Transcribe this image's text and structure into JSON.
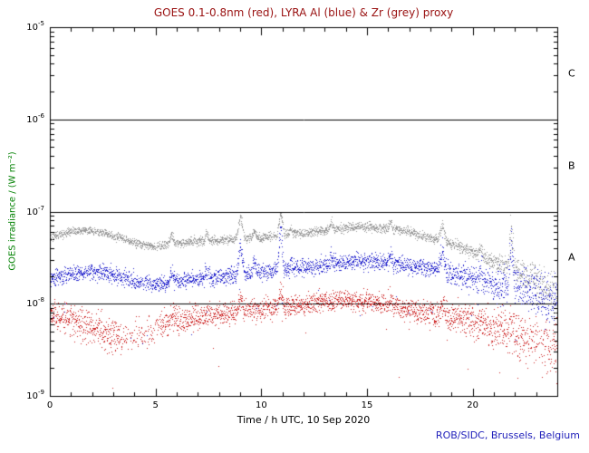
{
  "chart_data": {
    "type": "scatter",
    "title": "GOES 0.1-0.8nm (red), LYRA Al (blue) & Zr (grey) proxy",
    "title_color": "#991111",
    "xlabel": "Time / h UTC, 10 Sep 2020",
    "ylabel": "GOES irradiance / (W m⁻²)",
    "ylabel_color": "#008000",
    "credit": "ROB/SIDC, Brussels, Belgium",
    "credit_color": "#2222bb",
    "axis_color": "#000000",
    "x_range": [
      0,
      24
    ],
    "x_major_ticks": [
      0,
      5,
      10,
      15,
      20
    ],
    "x_minor_step": 1,
    "y_log_range": [
      -5,
      -9
    ],
    "y_tick_exponents": [
      -5,
      -6,
      -7,
      -8,
      -9
    ],
    "flare_class_lines": [
      -6,
      -7,
      -8
    ],
    "flare_class_labels": [
      {
        "label": "C",
        "center_log": -5.5
      },
      {
        "label": "B",
        "center_log": -6.5
      },
      {
        "label": "A",
        "center_log": -7.5
      }
    ],
    "cadence_minutes": 0.5,
    "seed": 20200910,
    "series": [
      {
        "name": "LYRA Zr proxy",
        "color": "#9a9a9a",
        "baseline_log10": [
          [
            0,
            -7.27
          ],
          [
            0.5,
            -7.24
          ],
          [
            1,
            -7.21
          ],
          [
            1.5,
            -7.2
          ],
          [
            2,
            -7.21
          ],
          [
            2.5,
            -7.23
          ],
          [
            3,
            -7.26
          ],
          [
            3.5,
            -7.3
          ],
          [
            4,
            -7.33
          ],
          [
            4.5,
            -7.36
          ],
          [
            5,
            -7.38
          ],
          [
            5.5,
            -7.36
          ],
          [
            6,
            -7.34
          ],
          [
            7,
            -7.32
          ],
          [
            8,
            -7.31
          ],
          [
            9,
            -7.29
          ],
          [
            10,
            -7.28
          ],
          [
            11,
            -7.25
          ],
          [
            12,
            -7.23
          ],
          [
            13,
            -7.2
          ],
          [
            13.5,
            -7.19
          ],
          [
            14,
            -7.17
          ],
          [
            15,
            -7.16
          ],
          [
            16,
            -7.18
          ],
          [
            17,
            -7.22
          ],
          [
            18,
            -7.28
          ],
          [
            18.5,
            -7.31
          ],
          [
            19,
            -7.35
          ],
          [
            19.5,
            -7.39
          ],
          [
            20,
            -7.44
          ],
          [
            20.5,
            -7.49
          ],
          [
            21,
            -7.54
          ],
          [
            21.5,
            -7.59
          ],
          [
            22,
            -7.63
          ],
          [
            22.5,
            -7.7
          ],
          [
            23,
            -7.76
          ],
          [
            23.5,
            -7.82
          ],
          [
            24,
            -7.88
          ]
        ],
        "sigma": [
          [
            0,
            0.022
          ],
          [
            18,
            0.025
          ],
          [
            20,
            0.03
          ],
          [
            21,
            0.045
          ],
          [
            22,
            0.08
          ],
          [
            23,
            0.1
          ],
          [
            24,
            0.12
          ]
        ],
        "spikes": [
          [
            5.75,
            0.12,
            0.15
          ],
          [
            7.4,
            0.1,
            0.12
          ],
          [
            9.0,
            0.24,
            0.2
          ],
          [
            9.65,
            0.1,
            0.12
          ],
          [
            10.9,
            0.24,
            0.18
          ],
          [
            11.4,
            0.08,
            0.1
          ],
          [
            13.3,
            0.08,
            0.12
          ],
          [
            16.1,
            0.09,
            0.12
          ],
          [
            18.55,
            0.18,
            0.2
          ],
          [
            20.35,
            0.1,
            0.12
          ],
          [
            21.8,
            0.45,
            0.15
          ],
          [
            22.9,
            0.1,
            0.1
          ]
        ],
        "gaps": [],
        "outlier_prob": 0.002,
        "outlier_depth": [
          0.2,
          0.6
        ]
      },
      {
        "name": "LYRA Al proxy",
        "color": "#2222cc",
        "baseline_log10": [
          [
            0,
            -7.74
          ],
          [
            1,
            -7.67
          ],
          [
            2,
            -7.64
          ],
          [
            2.5,
            -7.65
          ],
          [
            3,
            -7.69
          ],
          [
            4,
            -7.75
          ],
          [
            5,
            -7.79
          ],
          [
            6,
            -7.75
          ],
          [
            7,
            -7.72
          ],
          [
            8,
            -7.71
          ],
          [
            9,
            -7.67
          ],
          [
            10,
            -7.65
          ],
          [
            11,
            -7.62
          ],
          [
            12,
            -7.61
          ],
          [
            13,
            -7.58
          ],
          [
            14,
            -7.55
          ],
          [
            15,
            -7.53
          ],
          [
            16,
            -7.55
          ],
          [
            17,
            -7.58
          ],
          [
            18,
            -7.62
          ],
          [
            19,
            -7.67
          ],
          [
            20,
            -7.72
          ],
          [
            21,
            -7.78
          ],
          [
            22,
            -7.83
          ],
          [
            23,
            -7.9
          ],
          [
            24,
            -7.97
          ]
        ],
        "sigma": [
          [
            0,
            0.045
          ],
          [
            12,
            0.045
          ],
          [
            18,
            0.05
          ],
          [
            20,
            0.07
          ],
          [
            21.5,
            0.1
          ],
          [
            23,
            0.13
          ],
          [
            24,
            0.15
          ]
        ],
        "spikes": [
          [
            5.75,
            0.13,
            0.15
          ],
          [
            7.4,
            0.11,
            0.12
          ],
          [
            9.0,
            0.3,
            0.2
          ],
          [
            9.65,
            0.12,
            0.12
          ],
          [
            10.9,
            0.46,
            0.15
          ],
          [
            11.4,
            0.1,
            0.1
          ],
          [
            13.3,
            0.09,
            0.12
          ],
          [
            16.1,
            0.11,
            0.12
          ],
          [
            18.55,
            0.26,
            0.2
          ],
          [
            20.35,
            0.12,
            0.12
          ],
          [
            21.8,
            0.5,
            0.15
          ],
          [
            22.9,
            0.12,
            0.1
          ]
        ],
        "gaps": [],
        "outlier_prob": 0.005,
        "outlier_depth": [
          0.2,
          0.7
        ]
      },
      {
        "name": "GOES 0.1-0.8nm",
        "color": "#cc2222",
        "baseline_log10": [
          [
            0,
            -8.12
          ],
          [
            0.5,
            -8.15
          ],
          [
            1,
            -8.18
          ],
          [
            1.5,
            -8.22
          ],
          [
            2,
            -8.26
          ],
          [
            2.5,
            -8.3
          ],
          [
            3,
            -8.33
          ],
          [
            3.5,
            -8.36
          ],
          [
            4,
            -8.36
          ],
          [
            4.5,
            -8.32
          ],
          [
            5,
            -8.26
          ],
          [
            5.5,
            -8.2
          ],
          [
            6,
            -8.17
          ],
          [
            7,
            -8.14
          ],
          [
            8,
            -8.11
          ],
          [
            9,
            -8.08
          ],
          [
            10,
            -8.06
          ],
          [
            11,
            -8.03
          ],
          [
            12,
            -8.0
          ],
          [
            13,
            -7.97
          ],
          [
            14,
            -7.95
          ],
          [
            15,
            -7.97
          ],
          [
            16,
            -8.01
          ],
          [
            17,
            -8.06
          ],
          [
            18,
            -8.1
          ],
          [
            19,
            -8.14
          ],
          [
            20,
            -8.19
          ],
          [
            21,
            -8.27
          ],
          [
            22,
            -8.34
          ],
          [
            23,
            -8.43
          ],
          [
            24,
            -8.5
          ]
        ],
        "sigma": [
          [
            0,
            0.07
          ],
          [
            3,
            0.1
          ],
          [
            5,
            0.08
          ],
          [
            8,
            0.06
          ],
          [
            14,
            0.055
          ],
          [
            18,
            0.06
          ],
          [
            20,
            0.09
          ],
          [
            22,
            0.12
          ],
          [
            24,
            0.15
          ]
        ],
        "spikes": [
          [
            5.75,
            0.08,
            0.15
          ],
          [
            9.0,
            0.13,
            0.2
          ],
          [
            10.9,
            0.2,
            0.15
          ],
          [
            16.1,
            0.06,
            0.12
          ],
          [
            18.55,
            0.1,
            0.2
          ],
          [
            21.8,
            0.15,
            0.15
          ]
        ],
        "gaps": [
          {
            "from": 3.3,
            "to": 5.2,
            "keep": 0.5
          },
          {
            "from": 22.5,
            "to": 24,
            "keep": 0.75
          }
        ],
        "outlier_prob": 0.006,
        "outlier_depth": [
          0.2,
          0.7
        ]
      }
    ]
  }
}
